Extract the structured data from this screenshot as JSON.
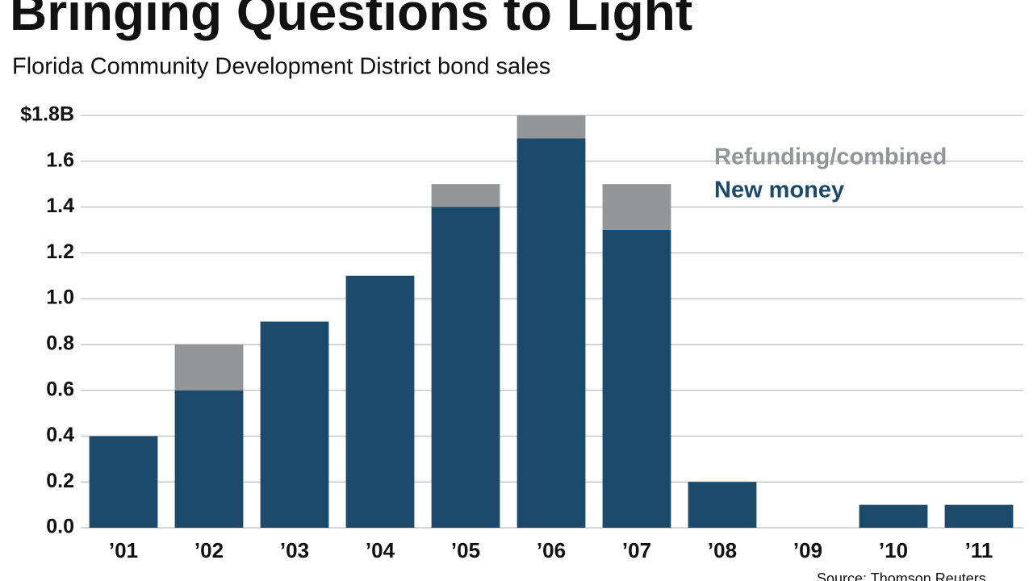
{
  "chart_data": {
    "type": "bar",
    "stacked": true,
    "title": "Bringing Questions to Light",
    "subtitle": "Florida Community Development District bond sales",
    "source": "Source: Thomson Reuters",
    "categories": [
      "’01",
      "’02",
      "’03",
      "’04",
      "’05",
      "’06",
      "’07",
      "’08",
      "’09",
      "’10",
      "’11"
    ],
    "series": [
      {
        "name": "New money",
        "color": "#1b4a6b",
        "values": [
          0.4,
          0.6,
          0.9,
          1.1,
          1.4,
          1.7,
          1.3,
          0.2,
          0,
          0.1,
          0.1
        ]
      },
      {
        "name": "Refunding/combined",
        "color": "#939598",
        "values": [
          0,
          0.2,
          0,
          0,
          0.1,
          0.1,
          0.2,
          0,
          0,
          0,
          0
        ]
      }
    ],
    "ylim": [
      0,
      1.8
    ],
    "yticks": [
      {
        "value": 0,
        "label": "0.0"
      },
      0.2,
      0.4,
      0.6,
      0.8,
      {
        "value": 1,
        "label": "1.0"
      },
      1.2,
      1.4,
      1.6,
      {
        "value": 1.8,
        "label": "$1.8B"
      }
    ],
    "grid": true
  }
}
